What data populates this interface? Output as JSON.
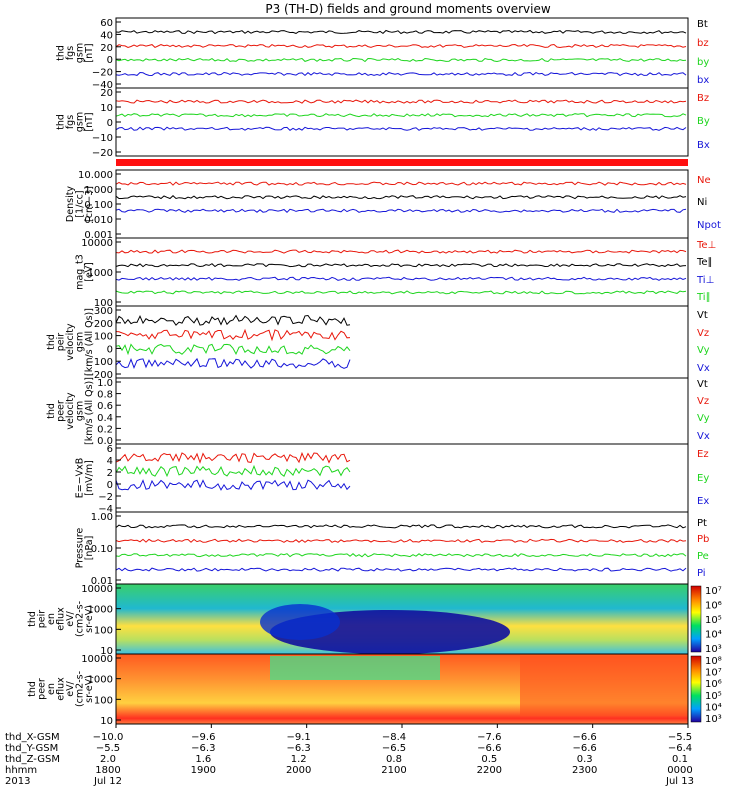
{
  "title": "P3 (TH-D) fields and ground moments overview",
  "colors": {
    "black": "#000000",
    "red": "#e8170b",
    "green": "#1ed51e",
    "blue": "#1616d8"
  },
  "panels": [
    {
      "id": "fgs1",
      "ylabel": [
        "thd",
        "fgs",
        "gsm",
        "[nT]"
      ],
      "ticks": [
        "60",
        "40",
        "20",
        "0",
        "−20",
        "−40"
      ],
      "legend": [
        {
          "label": "Bt",
          "color": "black"
        },
        {
          "label": "bz",
          "color": "red"
        },
        {
          "label": "by",
          "color": "green"
        },
        {
          "label": "bx",
          "color": "blue"
        }
      ]
    },
    {
      "id": "fgs2",
      "ylabel": [
        "thd",
        "fgs",
        "gsm",
        "[nT]"
      ],
      "ticks": [
        "20",
        "10",
        "0",
        "−10",
        "−20"
      ],
      "legend": [
        {
          "label": "Bz",
          "color": "red"
        },
        {
          "label": "By",
          "color": "green"
        },
        {
          "label": "Bx",
          "color": "blue"
        }
      ]
    },
    {
      "id": "density",
      "ylabel": [
        "Density",
        "[1/cc]",
        "[cm−3]"
      ],
      "ticks": [
        "10.000",
        "1.000",
        "0.100",
        "0.010",
        "0.001"
      ],
      "legend": [
        {
          "label": "Ne",
          "color": "red"
        },
        {
          "label": "Ni",
          "color": "black"
        },
        {
          "label": "Npot",
          "color": "blue"
        }
      ]
    },
    {
      "id": "temp",
      "ylabel": [
        "mag_t3",
        "[eV]"
      ],
      "ticks": [
        "10000",
        "1000",
        "100"
      ],
      "legend": [
        {
          "label": "Te⊥",
          "color": "red"
        },
        {
          "label": "Te∥",
          "color": "black"
        },
        {
          "label": "Ti⊥",
          "color": "blue"
        },
        {
          "label": "Ti∥",
          "color": "green"
        }
      ]
    },
    {
      "id": "peir",
      "ylabel": [
        "thd",
        "peir",
        "velocity",
        "gsm",
        "[km/s (All Qs)]"
      ],
      "ticks": [
        "300",
        "200",
        "100",
        "0",
        "−100",
        "−200"
      ],
      "legend": [
        {
          "label": "Vt",
          "color": "black"
        },
        {
          "label": "Vz",
          "color": "red"
        },
        {
          "label": "Vy",
          "color": "green"
        },
        {
          "label": "Vx",
          "color": "blue"
        }
      ]
    },
    {
      "id": "peer",
      "ylabel": [
        "thd",
        "peer",
        "velocity",
        "gsm",
        "[km/s (All Qs)]"
      ],
      "ticks": [
        "1.0",
        "0.8",
        "0.6",
        "0.4",
        "0.2",
        "0.0"
      ],
      "legend": [
        {
          "label": "Vt",
          "color": "black"
        },
        {
          "label": "Vz",
          "color": "red"
        },
        {
          "label": "Vy",
          "color": "green"
        },
        {
          "label": "Vx",
          "color": "blue"
        }
      ]
    },
    {
      "id": "efield",
      "ylabel": [
        "E=−VxB",
        "[mV/m]"
      ],
      "ticks": [
        "6",
        "4",
        "2",
        "0",
        "−2",
        "−4"
      ],
      "legend": [
        {
          "label": "Ez",
          "color": "red"
        },
        {
          "label": "Ey",
          "color": "green"
        },
        {
          "label": "Ex",
          "color": "blue"
        }
      ]
    },
    {
      "id": "pressure",
      "ylabel": [
        "Pressure",
        "[nPa]"
      ],
      "ticks": [
        "1.00",
        "0.10",
        "0.01"
      ],
      "legend": [
        {
          "label": "Pt",
          "color": "black"
        },
        {
          "label": "Pb",
          "color": "red"
        },
        {
          "label": "Pe",
          "color": "green"
        },
        {
          "label": "Pi",
          "color": "blue"
        }
      ]
    },
    {
      "id": "peir_spec",
      "ylabel": [
        "thd",
        "peir",
        "en",
        "eflux",
        "eV/",
        "(cm2-s-",
        "sr-eV)"
      ],
      "ticks": [
        "10000",
        "1000",
        "100",
        "10"
      ],
      "cbticks": [
        "10⁷",
        "10⁶",
        "10⁵",
        "10⁴",
        "10³"
      ]
    },
    {
      "id": "peer_spec",
      "ylabel": [
        "thd",
        "peer",
        "en",
        "eflux",
        "eV/",
        "(cm2-s-",
        "sr-eV)"
      ],
      "ticks": [
        "10000",
        "1000",
        "100",
        "10"
      ],
      "cbticks": [
        "10⁸",
        "10⁷",
        "10⁶",
        "10⁵",
        "10⁴",
        "10³"
      ]
    }
  ],
  "xaxis": {
    "rows": [
      {
        "label": "thd_X-GSM",
        "values": [
          "−10.0",
          "−9.6",
          "−9.1",
          "−8.4",
          "−7.6",
          "−6.6",
          "−5.5"
        ]
      },
      {
        "label": "thd_Y-GSM",
        "values": [
          "−5.5",
          "−6.3",
          "−6.3",
          "−6.5",
          "−6.6",
          "−6.6",
          "−6.4"
        ]
      },
      {
        "label": "thd_Z-GSM",
        "values": [
          "2.0",
          "1.6",
          "1.2",
          "0.8",
          "0.5",
          "0.3",
          "0.1"
        ]
      },
      {
        "label": "hhmm",
        "values": [
          "1800",
          "1900",
          "2000",
          "2100",
          "2200",
          "2300",
          "0000"
        ]
      },
      {
        "label": "2013",
        "values": [
          "Jul 12",
          "",
          "",
          "",
          "",
          "",
          "Jul 13"
        ]
      }
    ]
  }
}
